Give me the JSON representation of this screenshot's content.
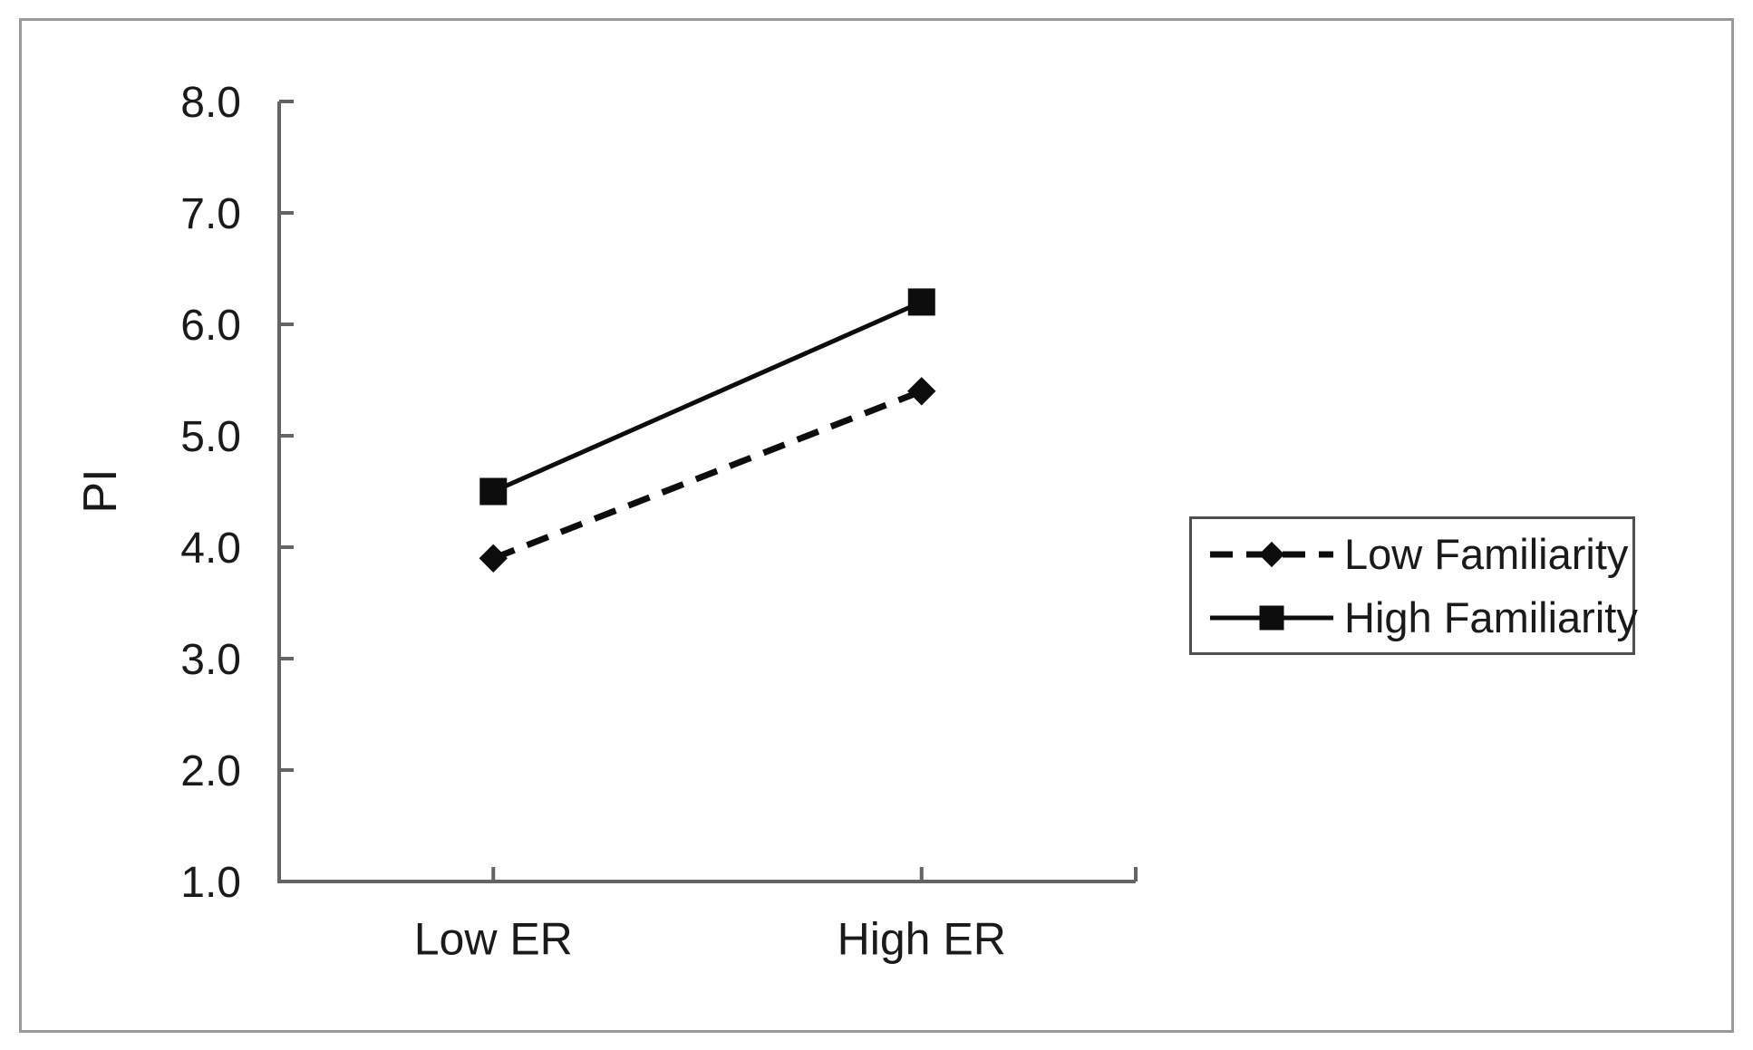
{
  "chart_data": {
    "type": "line",
    "categories": [
      "Low ER",
      "High ER"
    ],
    "series": [
      {
        "name": "Low Familiarity",
        "values": [
          3.9,
          5.4
        ],
        "marker": "diamond",
        "line_style": "dashed"
      },
      {
        "name": "High Familiarity",
        "values": [
          4.5,
          6.2
        ],
        "marker": "square",
        "line_style": "solid"
      }
    ],
    "title": "",
    "xlabel": "",
    "ylabel": "PI",
    "ylim": [
      1.0,
      8.0
    ],
    "yticks": [
      8.0,
      7.0,
      6.0,
      5.0,
      4.0,
      3.0,
      2.0,
      1.0
    ],
    "ytick_labels": [
      "8.0",
      "7.0",
      "6.0",
      "5.0",
      "4.0",
      "3.0",
      "2.0",
      "1.0"
    ],
    "grid": false,
    "legend_position": "right-center"
  },
  "colors": {
    "series": "#0d0d0d",
    "axis": "#646464",
    "text": "#1a1a1a",
    "frame_border": "#9a9a9a",
    "legend_border": "#4f4f4f",
    "background": "#ffffff"
  }
}
